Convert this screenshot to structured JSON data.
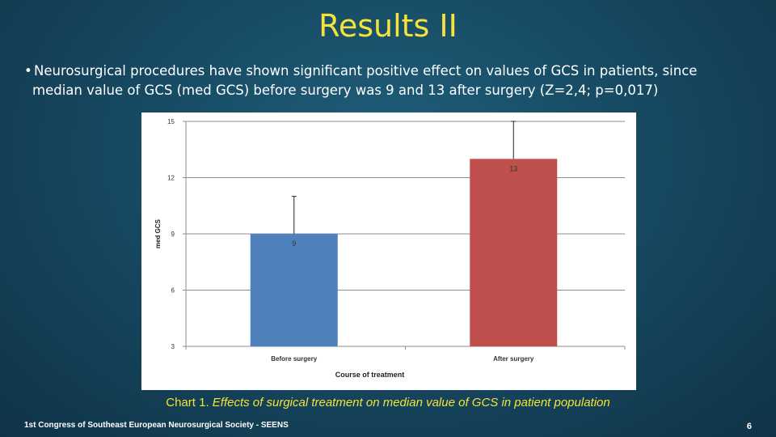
{
  "slide": {
    "title": "Results II",
    "bullet_marker": "•",
    "bullet_line1": "Neurosurgical procedures have shown significant positive effect on values of GCS in patients, since",
    "bullet_line2": "median value of GCS (med GCS) before surgery was 9 and 13 after surgery (Z=2,4; p=0,017)",
    "caption_prefix": "Chart  1.",
    "caption_text": "Effects of surgical treatment on median value of GCS in patient population",
    "footer": "1st Congress of Southeast European Neurosurgical Society - SEENS",
    "page_number": "6"
  },
  "chart_data": {
    "type": "bar",
    "categories": [
      "Before surgery",
      "After surgery"
    ],
    "values": [
      9,
      13
    ],
    "data_labels": [
      "9",
      "13"
    ],
    "error_upper": [
      11,
      15
    ],
    "colors": [
      "#4f81bd",
      "#c0504d"
    ],
    "xlabel": "Course of treatment",
    "ylabel": "med GCS",
    "ylim": [
      3,
      15
    ],
    "yticks": [
      3,
      6,
      9,
      12,
      15
    ],
    "grid": true
  }
}
